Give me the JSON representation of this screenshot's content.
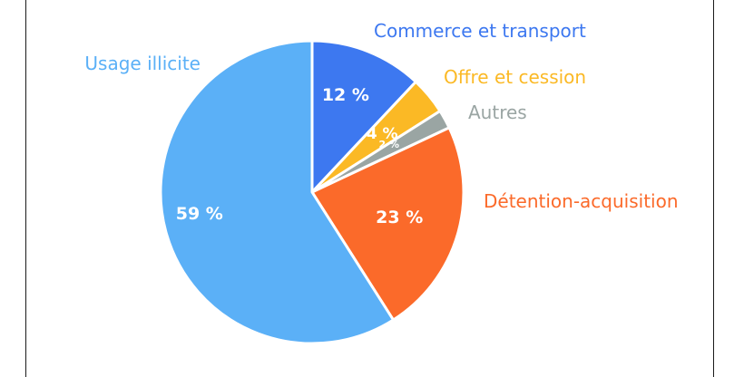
{
  "chart_data": {
    "type": "pie",
    "title": "",
    "slices": [
      {
        "label": "Commerce et transport",
        "value": 12,
        "display": "12 %",
        "color": "#3d78f0"
      },
      {
        "label": "Offre et cession",
        "value": 4,
        "display": "4 %",
        "color": "#fbb925"
      },
      {
        "label": "Autres",
        "value": 2,
        "display": "2 %",
        "color": "#9aa5a3"
      },
      {
        "label": "Détention-acquisition",
        "value": 23,
        "display": "23 %",
        "color": "#fb6a2a"
      },
      {
        "label": "Usage illicite",
        "value": 59,
        "display": "59 %",
        "color": "#5bb0f7"
      }
    ],
    "start_angle_deg": 0,
    "direction": "clockwise",
    "legend": "external labels"
  }
}
